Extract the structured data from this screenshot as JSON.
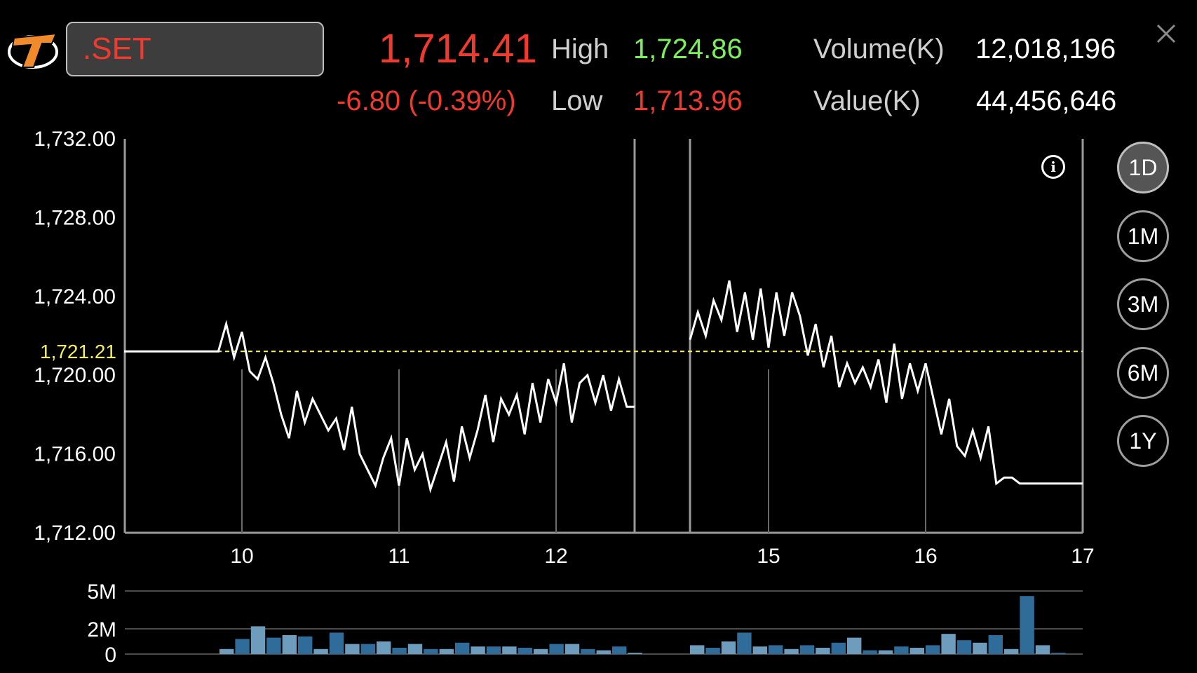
{
  "header": {
    "symbol": ".SET",
    "last_price": "1,714.41",
    "change": "-6.80 (-0.39%)",
    "high_label": "High",
    "high_value": "1,724.86",
    "low_label": "Low",
    "low_value": "1,713.96",
    "volume_label": "Volume(K)",
    "volume_value": "12,018,196",
    "value_label": "Value(K)",
    "value_value": "44,456,646",
    "close_icon": "close-icon",
    "logo_icon": "brand-logo-icon"
  },
  "colors": {
    "negative": "#f03a2e",
    "positive": "#7cf05a",
    "reference": "#f2ee5c",
    "volume_bar_dark": "#2f6c9a",
    "volume_bar_light": "#6e9cbc"
  },
  "ranges": [
    "1D",
    "1M",
    "3M",
    "6M",
    "1Y"
  ],
  "active_range": "1D",
  "info_icon": "info-icon",
  "chart_data": {
    "type": "line",
    "y_ticks": [
      "1,732.00",
      "1,728.00",
      "1,724.00",
      "1,720.00",
      "1,716.00",
      "1,712.00"
    ],
    "ylim": [
      1712,
      1732
    ],
    "x_ticks": [
      "10",
      "11",
      "12",
      "15",
      "16",
      "17"
    ],
    "reference_label": "1,721.21",
    "reference_value": 1721.21,
    "morning_session": [
      [
        9.25,
        1721.21
      ],
      [
        9.85,
        1721.21
      ],
      [
        9.9,
        1722.6
      ],
      [
        9.95,
        1720.9
      ],
      [
        10.0,
        1722.2
      ],
      [
        10.05,
        1720.2
      ],
      [
        10.1,
        1719.8
      ],
      [
        10.15,
        1720.9
      ],
      [
        10.2,
        1719.6
      ],
      [
        10.25,
        1718.0
      ],
      [
        10.3,
        1716.8
      ],
      [
        10.35,
        1719.2
      ],
      [
        10.4,
        1717.6
      ],
      [
        10.45,
        1718.8
      ],
      [
        10.5,
        1718.0
      ],
      [
        10.55,
        1717.2
      ],
      [
        10.6,
        1717.8
      ],
      [
        10.65,
        1716.2
      ],
      [
        10.7,
        1718.4
      ],
      [
        10.75,
        1716.0
      ],
      [
        10.8,
        1715.2
      ],
      [
        10.85,
        1714.4
      ],
      [
        10.9,
        1715.8
      ],
      [
        10.95,
        1716.8
      ],
      [
        11.0,
        1714.4
      ],
      [
        11.05,
        1716.8
      ],
      [
        11.1,
        1715.2
      ],
      [
        11.15,
        1716.0
      ],
      [
        11.2,
        1714.2
      ],
      [
        11.25,
        1715.4
      ],
      [
        11.3,
        1716.6
      ],
      [
        11.35,
        1714.6
      ],
      [
        11.4,
        1717.4
      ],
      [
        11.45,
        1715.8
      ],
      [
        11.5,
        1717.2
      ],
      [
        11.55,
        1719.0
      ],
      [
        11.6,
        1716.6
      ],
      [
        11.65,
        1718.8
      ],
      [
        11.7,
        1718.0
      ],
      [
        11.75,
        1719.0
      ],
      [
        11.8,
        1717.0
      ],
      [
        11.85,
        1719.6
      ],
      [
        11.9,
        1717.6
      ],
      [
        11.95,
        1719.8
      ],
      [
        12.0,
        1718.6
      ],
      [
        12.05,
        1720.6
      ],
      [
        12.1,
        1717.6
      ],
      [
        12.15,
        1719.6
      ],
      [
        12.2,
        1720.0
      ],
      [
        12.25,
        1718.6
      ],
      [
        12.3,
        1720.0
      ],
      [
        12.35,
        1718.2
      ],
      [
        12.4,
        1719.8
      ],
      [
        12.45,
        1718.4
      ],
      [
        12.5,
        1718.4
      ]
    ],
    "afternoon_session": [
      [
        14.5,
        1721.8
      ],
      [
        14.55,
        1723.2
      ],
      [
        14.6,
        1722.0
      ],
      [
        14.65,
        1723.8
      ],
      [
        14.7,
        1722.8
      ],
      [
        14.75,
        1724.8
      ],
      [
        14.8,
        1722.2
      ],
      [
        14.85,
        1724.2
      ],
      [
        14.9,
        1721.8
      ],
      [
        14.95,
        1724.4
      ],
      [
        15.0,
        1721.4
      ],
      [
        15.05,
        1724.2
      ],
      [
        15.1,
        1722.0
      ],
      [
        15.15,
        1724.2
      ],
      [
        15.2,
        1723.0
      ],
      [
        15.25,
        1721.0
      ],
      [
        15.3,
        1722.6
      ],
      [
        15.35,
        1720.4
      ],
      [
        15.4,
        1722.0
      ],
      [
        15.45,
        1719.4
      ],
      [
        15.5,
        1720.6
      ],
      [
        15.55,
        1719.6
      ],
      [
        15.6,
        1720.4
      ],
      [
        15.65,
        1719.4
      ],
      [
        15.7,
        1720.8
      ],
      [
        15.75,
        1718.6
      ],
      [
        15.8,
        1721.6
      ],
      [
        15.85,
        1718.8
      ],
      [
        15.9,
        1720.6
      ],
      [
        15.95,
        1719.2
      ],
      [
        16.0,
        1720.6
      ],
      [
        16.05,
        1718.8
      ],
      [
        16.1,
        1717.0
      ],
      [
        16.15,
        1718.8
      ],
      [
        16.2,
        1716.4
      ],
      [
        16.25,
        1715.9
      ],
      [
        16.3,
        1717.2
      ],
      [
        16.35,
        1715.8
      ],
      [
        16.4,
        1717.4
      ],
      [
        16.45,
        1714.5
      ],
      [
        16.5,
        1714.8
      ],
      [
        16.55,
        1714.8
      ],
      [
        16.6,
        1714.5
      ],
      [
        17.0,
        1714.5
      ]
    ],
    "volume": {
      "y_ticks": [
        "5M",
        "2M",
        "0"
      ],
      "ylim": [
        0,
        5
      ],
      "morning_bars": [
        0.4,
        1.2,
        2.2,
        1.3,
        1.5,
        1.4,
        0.4,
        1.7,
        0.8,
        0.8,
        1.0,
        0.5,
        0.8,
        0.4,
        0.4,
        0.9,
        0.6,
        0.6,
        0.6,
        0.5,
        0.4,
        0.8,
        0.8,
        0.4,
        0.3,
        0.6,
        0.1
      ],
      "afternoon_bars": [
        0.7,
        0.5,
        1.0,
        1.7,
        0.6,
        0.7,
        0.4,
        0.7,
        0.5,
        0.9,
        1.3,
        0.3,
        0.3,
        0.6,
        0.5,
        0.7,
        1.6,
        1.1,
        0.9,
        1.5,
        0.4,
        4.6,
        0.7,
        0.1
      ]
    }
  }
}
